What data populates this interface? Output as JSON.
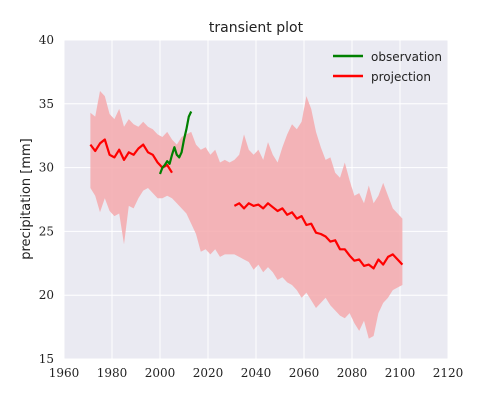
{
  "chart_data": {
    "type": "line",
    "title": "transient plot",
    "xlabel": "",
    "ylabel": "precipitation [mm]",
    "xlim": [
      1960,
      2120
    ],
    "ylim": [
      15,
      40
    ],
    "x_ticks": [
      1960,
      1980,
      2000,
      2020,
      2040,
      2060,
      2080,
      2100,
      2120
    ],
    "y_ticks": [
      15,
      20,
      25,
      30,
      35,
      40
    ],
    "grid": true,
    "legend_position": "top-right",
    "colors": {
      "background": "#eaeaf2",
      "grid": "#ffffff",
      "observation": "#008000",
      "projection": "#ff0000",
      "band": "#f4a9ad"
    },
    "series": [
      {
        "name": "observation",
        "x": [
          2000,
          2001,
          2002,
          2003,
          2004,
          2005,
          2006,
          2007,
          2008,
          2009,
          2010,
          2011,
          2012,
          2013
        ],
        "y": [
          29.5,
          30.0,
          30.2,
          30.5,
          30.3,
          31.0,
          31.6,
          31.0,
          30.8,
          31.2,
          32.2,
          33.0,
          34.0,
          34.4
        ]
      },
      {
        "name": "projection",
        "x": [
          1971,
          1973,
          1975,
          1977,
          1979,
          1981,
          1983,
          1985,
          1987,
          1989,
          1991,
          1993,
          1995,
          1997,
          1999,
          2001,
          2003,
          2005,
          2031,
          2033,
          2035,
          2037,
          2039,
          2041,
          2043,
          2045,
          2047,
          2049,
          2051,
          2053,
          2055,
          2057,
          2059,
          2061,
          2063,
          2065,
          2067,
          2069,
          2071,
          2073,
          2075,
          2077,
          2079,
          2081,
          2083,
          2085,
          2087,
          2089,
          2091,
          2093,
          2095,
          2097,
          2099,
          2101
        ],
        "y": [
          31.8,
          31.3,
          31.9,
          32.2,
          31.0,
          30.8,
          31.4,
          30.6,
          31.2,
          31.0,
          31.5,
          31.8,
          31.2,
          31.0,
          30.4,
          30.0,
          30.2,
          29.6,
          27.0,
          27.2,
          26.8,
          27.2,
          27.0,
          27.1,
          26.8,
          27.2,
          26.9,
          26.6,
          26.8,
          26.3,
          26.5,
          26.0,
          26.2,
          25.5,
          25.6,
          24.9,
          24.8,
          24.6,
          24.2,
          24.3,
          23.6,
          23.6,
          23.1,
          22.7,
          22.8,
          22.3,
          22.4,
          22.1,
          22.8,
          22.4,
          23.0,
          23.2,
          22.8,
          22.4
        ]
      }
    ],
    "uncertainty_band": {
      "x": [
        1971,
        1973,
        1975,
        1977,
        1979,
        1981,
        1983,
        1985,
        1987,
        1989,
        1991,
        1993,
        1995,
        1997,
        1999,
        2001,
        2003,
        2005,
        2007,
        2009,
        2011,
        2013,
        2015,
        2017,
        2019,
        2021,
        2023,
        2025,
        2027,
        2029,
        2031,
        2033,
        2035,
        2037,
        2039,
        2041,
        2043,
        2045,
        2047,
        2049,
        2051,
        2053,
        2055,
        2057,
        2059,
        2061,
        2063,
        2065,
        2067,
        2069,
        2071,
        2073,
        2075,
        2077,
        2079,
        2081,
        2083,
        2085,
        2087,
        2089,
        2091,
        2093,
        2095,
        2097,
        2099,
        2101
      ],
      "upper": [
        34.3,
        34.0,
        36.0,
        35.6,
        34.2,
        33.8,
        34.6,
        33.2,
        33.8,
        33.4,
        33.2,
        33.6,
        33.2,
        33.0,
        32.6,
        32.4,
        32.8,
        32.2,
        31.8,
        32.4,
        32.6,
        32.8,
        31.8,
        31.4,
        31.6,
        31.0,
        31.4,
        30.4,
        30.6,
        30.4,
        30.6,
        31.0,
        32.6,
        31.4,
        31.0,
        31.4,
        30.6,
        32.0,
        31.0,
        30.4,
        31.6,
        32.6,
        33.4,
        33.0,
        33.6,
        35.6,
        34.6,
        32.8,
        31.6,
        30.6,
        30.8,
        29.6,
        29.2,
        30.4,
        29.0,
        27.8,
        28.0,
        27.2,
        28.6,
        27.2,
        27.8,
        28.8,
        27.8,
        26.8,
        26.4,
        26.0
      ],
      "lower": [
        28.4,
        27.8,
        26.5,
        27.6,
        26.6,
        26.2,
        26.4,
        24.0,
        27.0,
        26.8,
        27.6,
        28.2,
        28.4,
        28.0,
        27.6,
        27.6,
        27.8,
        27.6,
        27.2,
        26.8,
        26.4,
        25.6,
        24.8,
        23.4,
        23.6,
        23.2,
        23.6,
        23.0,
        23.2,
        23.2,
        23.2,
        23.0,
        22.8,
        22.6,
        22.0,
        22.4,
        21.8,
        22.2,
        21.8,
        21.2,
        21.4,
        21.0,
        20.8,
        20.4,
        19.8,
        20.2,
        19.6,
        19.0,
        19.4,
        19.8,
        19.2,
        18.8,
        18.4,
        18.2,
        18.6,
        17.8,
        17.2,
        18.0,
        16.6,
        16.8,
        18.6,
        19.4,
        19.8,
        20.4,
        20.6,
        20.8
      ]
    }
  }
}
